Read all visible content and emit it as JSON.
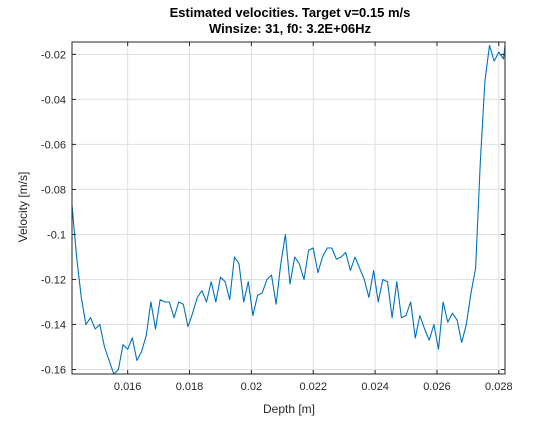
{
  "chart_data": {
    "type": "line",
    "title": "Estimated velocities. Target v=0.15 m/s",
    "subtitle": "Winsize: 31, f0: 3.2E+06Hz",
    "xlabel": "Depth [m]",
    "ylabel": "Velocity [m/s]",
    "xlim": [
      0.0142,
      0.0282
    ],
    "ylim": [
      -0.162,
      -0.0145
    ],
    "x_ticks": [
      0.016,
      0.018,
      0.02,
      0.022,
      0.024,
      0.026,
      0.028
    ],
    "x_tick_labels": [
      "0.016",
      "0.018",
      "0.02",
      "0.022",
      "0.024",
      "0.026",
      "0.028"
    ],
    "y_ticks": [
      -0.16,
      -0.14,
      -0.12,
      -0.1,
      -0.08,
      -0.06,
      -0.04,
      -0.02
    ],
    "y_tick_labels": [
      "-0.16",
      "-0.14",
      "-0.12",
      "-0.1",
      "-0.08",
      "-0.06",
      "-0.04",
      "-0.02"
    ],
    "grid": true,
    "line_color": "#0072bd",
    "series": [
      {
        "x": [
          0.0142,
          0.01435,
          0.0145,
          0.01465,
          0.0148,
          0.01495,
          0.0151,
          0.01525,
          0.0154,
          0.01555,
          0.0157,
          0.01585,
          0.016,
          0.01615,
          0.0163,
          0.01645,
          0.0166,
          0.01675,
          0.0169,
          0.01705,
          0.0172,
          0.01735,
          0.0175,
          0.01765,
          0.0178,
          0.01795,
          0.0181,
          0.01825,
          0.0184,
          0.01855,
          0.0187,
          0.01885,
          0.019,
          0.01915,
          0.0193,
          0.01945,
          0.0196,
          0.01975,
          0.0199,
          0.02005,
          0.0202,
          0.02035,
          0.0205,
          0.02065,
          0.0208,
          0.02095,
          0.0211,
          0.02125,
          0.0214,
          0.02155,
          0.0217,
          0.02185,
          0.022,
          0.02215,
          0.0223,
          0.02245,
          0.0226,
          0.02275,
          0.0229,
          0.02305,
          0.0232,
          0.02335,
          0.0235,
          0.02365,
          0.0238,
          0.02395,
          0.0241,
          0.02425,
          0.0244,
          0.02455,
          0.0247,
          0.02485,
          0.025,
          0.02515,
          0.0253,
          0.02545,
          0.0256,
          0.02575,
          0.0259,
          0.02605,
          0.0262,
          0.02635,
          0.0265,
          0.02665,
          0.0268,
          0.02695,
          0.0271,
          0.02725,
          0.0274,
          0.02755,
          0.0277,
          0.02785,
          0.028,
          0.02815,
          0.0282
        ],
        "y": [
          -0.087,
          -0.11,
          -0.128,
          -0.14,
          -0.137,
          -0.142,
          -0.14,
          -0.15,
          -0.156,
          -0.162,
          -0.16,
          -0.149,
          -0.151,
          -0.146,
          -0.156,
          -0.152,
          -0.145,
          -0.13,
          -0.142,
          -0.129,
          -0.13,
          -0.13,
          -0.137,
          -0.13,
          -0.131,
          -0.141,
          -0.135,
          -0.128,
          -0.125,
          -0.13,
          -0.121,
          -0.13,
          -0.119,
          -0.121,
          -0.129,
          -0.11,
          -0.113,
          -0.13,
          -0.121,
          -0.136,
          -0.127,
          -0.126,
          -0.12,
          -0.118,
          -0.131,
          -0.113,
          -0.1,
          -0.122,
          -0.11,
          -0.113,
          -0.12,
          -0.107,
          -0.106,
          -0.117,
          -0.11,
          -0.106,
          -0.106,
          -0.111,
          -0.11,
          -0.108,
          -0.116,
          -0.11,
          -0.115,
          -0.12,
          -0.128,
          -0.116,
          -0.13,
          -0.12,
          -0.121,
          -0.137,
          -0.121,
          -0.137,
          -0.136,
          -0.13,
          -0.146,
          -0.136,
          -0.142,
          -0.147,
          -0.14,
          -0.151,
          -0.13,
          -0.139,
          -0.135,
          -0.138,
          -0.148,
          -0.14,
          -0.126,
          -0.115,
          -0.068,
          -0.032,
          -0.016,
          -0.023,
          -0.019,
          -0.022,
          -0.016
        ]
      }
    ]
  }
}
